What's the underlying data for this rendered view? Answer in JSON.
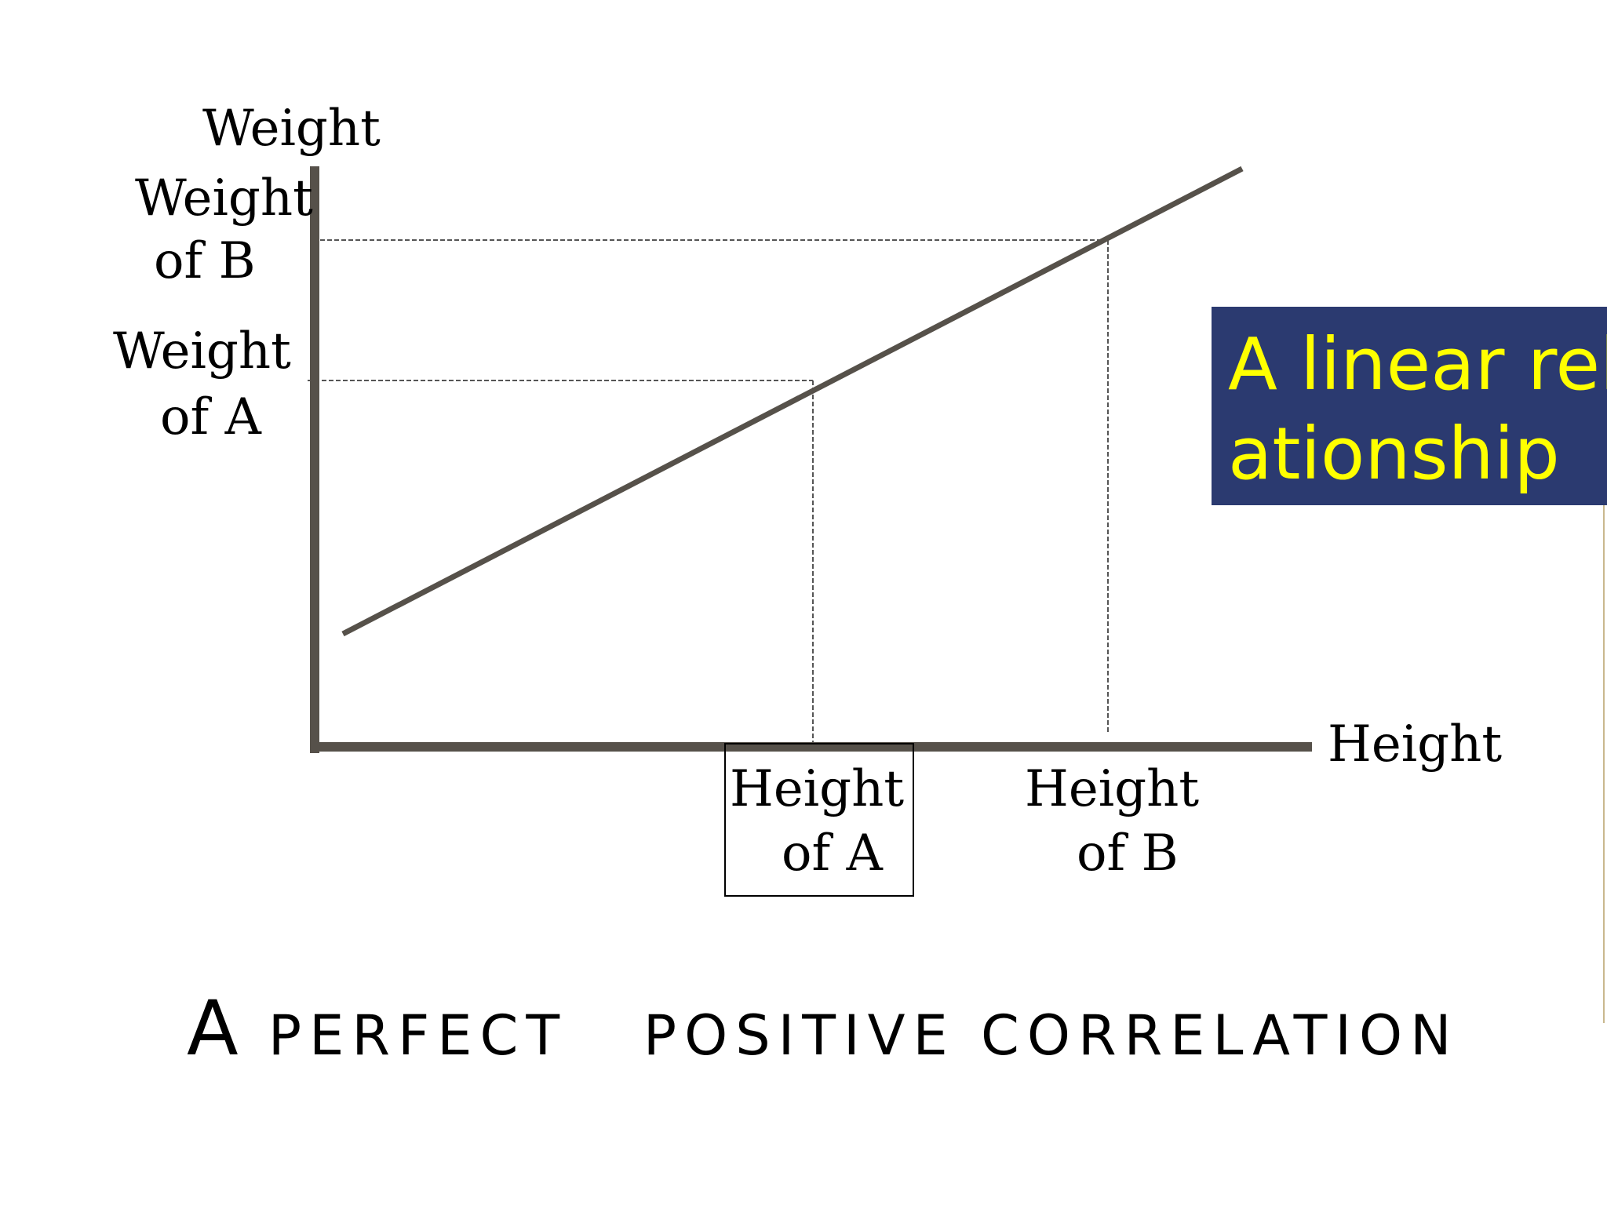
{
  "diagram": {
    "y_axis_label": "Weight",
    "x_axis_label": "Height",
    "y_marks": [
      {
        "line1": "Weight",
        "line2": "of B"
      },
      {
        "line1": "Weight",
        "line2": "of A"
      }
    ],
    "x_marks": [
      {
        "line1": "Height",
        "line2": "of A"
      },
      {
        "line1": "Height",
        "line2": "of B"
      }
    ],
    "colors": {
      "axis": "#56514a",
      "trend_line": "#56514a",
      "guide": "#555555"
    }
  },
  "callout": {
    "text": "A linear relationship",
    "background": "#2b3a70",
    "color": "#ffff00"
  },
  "title": {
    "first": "A",
    "rest": " PERFECT   POSITIVE CORRELATION"
  }
}
